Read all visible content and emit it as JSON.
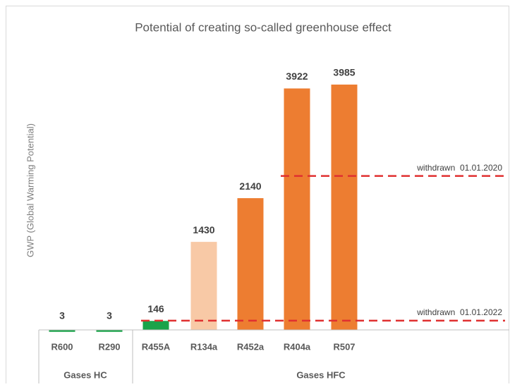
{
  "chart_data": {
    "type": "bar",
    "title": "Potential of creating so-called greenhouse effect",
    "y_label": "GWP (Global Warming Potential)",
    "categories": [
      "R600",
      "R290",
      "R455A",
      "R134a",
      "R452a",
      "R404a",
      "R507"
    ],
    "values": [
      3,
      3,
      146,
      1430,
      2140,
      3922,
      3985
    ],
    "colors": [
      "#1aa34a",
      "#1aa34a",
      "#1aa34a",
      "#f8c9a6",
      "#ed7d31",
      "#ed7d31",
      "#ed7d31"
    ],
    "groups": [
      "Gases HC",
      "Gases HFC"
    ],
    "ylim": [
      0,
      4500
    ],
    "reference_lines": [
      {
        "value": 2500,
        "label": "withdrawn  01.01.2020",
        "color": "#e03030"
      },
      {
        "value": 150,
        "label": "withdrawn  01.01.2022",
        "color": "#e03030"
      }
    ]
  }
}
